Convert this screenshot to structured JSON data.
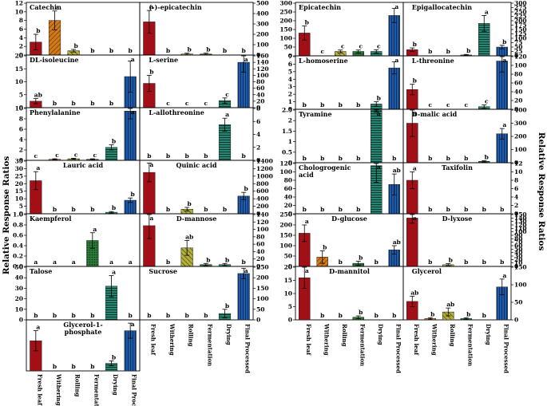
{
  "figure": {
    "left_ylabel": "Relative Response Ratios",
    "right_ylabel": "Relative Response Ratios",
    "stages": [
      "Fresh leaf",
      "Withering",
      "Rolling",
      "Fermentation",
      "Drying",
      "Final Processed"
    ],
    "colors": [
      "#a30f17",
      "#d27a1a",
      "#a9a33c",
      "#2a7a3a",
      "#2a8a74",
      "#1e5ba8"
    ]
  },
  "chart_data": [
    {
      "type": "bar",
      "title": "Catechin",
      "categories": [
        "Fresh leaf",
        "Withering",
        "Rolling",
        "Fermentation",
        "Drying",
        "Final Processed"
      ],
      "values": [
        3,
        8,
        1,
        0,
        0,
        0
      ],
      "errors": [
        1.8,
        2.2,
        0.3,
        0,
        0,
        0
      ],
      "letters": [
        "b",
        "a",
        "b",
        "b",
        "b",
        "b"
      ],
      "ylim": [
        0,
        12
      ],
      "yticks": [
        "0",
        "2",
        "4",
        "6",
        "8",
        "10",
        "12"
      ]
    },
    {
      "type": "bar",
      "title": "(-)-epicatechin",
      "categories": [
        "Fresh leaf",
        "Withering",
        "Rolling",
        "Fermentation",
        "Drying",
        "Final Processed"
      ],
      "values": [
        320,
        0,
        10,
        10,
        0,
        0
      ],
      "errors": [
        110,
        0,
        8,
        8,
        0,
        0
      ],
      "letters": [
        "a",
        "b",
        "b",
        "b",
        "b",
        "b"
      ],
      "ylim": [
        0,
        500
      ],
      "yticks": [
        "0",
        "100",
        "200",
        "300",
        "400",
        "500"
      ]
    },
    {
      "type": "bar",
      "title": "Epicatechin",
      "categories": [
        "Fresh leaf",
        "Withering",
        "Rolling",
        "Fermentation",
        "Drying",
        "Final Processed"
      ],
      "values": [
        130,
        0,
        25,
        25,
        25,
        230
      ],
      "errors": [
        40,
        0,
        8,
        8,
        10,
        40
      ],
      "letters": [
        "b",
        "c",
        "c",
        "c",
        "c",
        "a"
      ],
      "ylim": [
        0,
        300
      ],
      "yticks": [
        "0",
        "50",
        "100",
        "150",
        "200",
        "250",
        "300"
      ]
    },
    {
      "type": "bar",
      "title": "Epigallocatechin",
      "categories": [
        "Fresh leaf",
        "Withering",
        "Rolling",
        "Fermentation",
        "Drying",
        "Final Processed"
      ],
      "values": [
        35,
        0,
        0,
        5,
        185,
        50
      ],
      "errors": [
        10,
        0,
        0,
        3,
        45,
        10
      ],
      "letters": [
        "b",
        "b",
        "b",
        "b",
        "a",
        "b"
      ],
      "ylim": [
        0,
        300
      ],
      "yticks": [
        "0",
        "25",
        "50",
        "75",
        "100",
        "125",
        "150",
        "175",
        "200",
        "225",
        "250",
        "275",
        "300"
      ]
    },
    {
      "type": "bar",
      "title": "DL-isoleucine",
      "categories": [
        "Fresh leaf",
        "Withering",
        "Rolling",
        "Fermentation",
        "Drying",
        "Final Processed"
      ],
      "values": [
        2.5,
        0,
        0,
        0,
        0,
        12
      ],
      "errors": [
        1,
        0,
        0,
        0,
        0,
        6
      ],
      "letters": [
        "ab",
        "b",
        "b",
        "b",
        "b",
        "a"
      ],
      "ylim": [
        0,
        20
      ],
      "yticks": [
        "0",
        "5",
        "10",
        "15",
        "20"
      ]
    },
    {
      "type": "bar",
      "title": "L-serine",
      "categories": [
        "Fresh leaf",
        "Withering",
        "Rolling",
        "Fermentation",
        "Drying",
        "Final Processed"
      ],
      "values": [
        75,
        0,
        0,
        0,
        22,
        140
      ],
      "errors": [
        25,
        0,
        0,
        0,
        8,
        30
      ],
      "letters": [
        "b",
        "c",
        "c",
        "c",
        "c",
        "a"
      ],
      "ylim": [
        0,
        160
      ],
      "yticks": [
        "0",
        "20",
        "40",
        "60",
        "80",
        "100",
        "120",
        "140",
        "160"
      ]
    },
    {
      "type": "bar",
      "title": "L-homoserine",
      "categories": [
        "Fresh leaf",
        "Withering",
        "Rolling",
        "Fermentation",
        "Drying",
        "Final Processed"
      ],
      "values": [
        0,
        0,
        0,
        0,
        0.7,
        5.5
      ],
      "errors": [
        0,
        0,
        0,
        0,
        0.3,
        0.8
      ],
      "letters": [
        "b",
        "b",
        "b",
        "b",
        "b",
        "a"
      ],
      "ylim": [
        0,
        7
      ],
      "yticks": [
        "0",
        "1",
        "2",
        "3",
        "4",
        "5",
        "6",
        "7"
      ]
    },
    {
      "type": "bar",
      "title": "L-threonine",
      "categories": [
        "Fresh leaf",
        "Withering",
        "Rolling",
        "Fermentation",
        "Drying",
        "Final Processed"
      ],
      "values": [
        45,
        0,
        0,
        0,
        6,
        110
      ],
      "errors": [
        12,
        0,
        0,
        0,
        4,
        25
      ],
      "letters": [
        "b",
        "c",
        "c",
        "c",
        "c",
        "a"
      ],
      "ylim": [
        0,
        120
      ],
      "yticks": [
        "0",
        "20",
        "40",
        "60",
        "80",
        "100",
        "120"
      ]
    },
    {
      "type": "bar",
      "title": "Phenylalanine",
      "categories": [
        "Fresh leaf",
        "Withering",
        "Rolling",
        "Fermentation",
        "Drying",
        "Final Processed"
      ],
      "values": [
        0,
        0.2,
        0.3,
        0.2,
        2.5,
        9.5
      ],
      "errors": [
        0,
        0.1,
        0.1,
        0.1,
        0.5,
        1.5
      ],
      "letters": [
        "c",
        "c",
        "c",
        "c",
        "b",
        "a"
      ],
      "ylim": [
        0,
        10
      ],
      "yticks": [
        "0",
        "2",
        "4",
        "6",
        "8",
        "10"
      ]
    },
    {
      "type": "bar",
      "title": "L-allothreonine",
      "categories": [
        "Fresh leaf",
        "Withering",
        "Rolling",
        "Fermentation",
        "Drying",
        "Final Processed"
      ],
      "values": [
        0,
        0,
        0,
        0,
        5.5,
        0
      ],
      "errors": [
        0,
        0,
        0,
        0,
        1,
        0
      ],
      "letters": [
        "b",
        "b",
        "b",
        "b",
        "a",
        "b"
      ],
      "ylim": [
        0,
        8
      ],
      "yticks": [
        "0",
        "2",
        "4",
        "6",
        "8"
      ]
    },
    {
      "type": "bar",
      "title": "Tyramine",
      "categories": [
        "Fresh leaf",
        "Withering",
        "Rolling",
        "Fermentation",
        "Drying",
        "Final Processed"
      ],
      "values": [
        0,
        0,
        0,
        0,
        2.5,
        0
      ],
      "errors": [
        0,
        0,
        0,
        0,
        0.1,
        0
      ],
      "letters": [
        "b",
        "b",
        "b",
        "b",
        "a",
        "b"
      ],
      "ylim": [
        0,
        2.5
      ],
      "yticks": [
        "0",
        "0.5",
        "1",
        "1.5",
        "2",
        "2.5"
      ]
    },
    {
      "type": "bar",
      "title": "D-malic acid",
      "categories": [
        "Fresh leaf",
        "Withering",
        "Rolling",
        "Fermentation",
        "Drying",
        "Final Processed"
      ],
      "values": [
        300,
        0,
        0,
        0,
        10,
        220
      ],
      "errors": [
        100,
        0,
        0,
        0,
        5,
        40
      ],
      "letters": [
        "a",
        "b",
        "b",
        "b",
        "b",
        "a"
      ],
      "ylim": [
        0,
        400
      ],
      "yticks": [
        "0",
        "100",
        "200",
        "300",
        "400"
      ]
    },
    {
      "type": "bar",
      "title": "Lauric acid",
      "categories": [
        "Fresh leaf",
        "Withering",
        "Rolling",
        "Fermentation",
        "Drying",
        "Final Processed"
      ],
      "values": [
        22,
        0,
        0,
        0,
        1,
        9
      ],
      "errors": [
        6,
        0,
        0,
        0,
        0.5,
        1.5
      ],
      "letters": [
        "a",
        "b",
        "b",
        "b",
        "b",
        "b"
      ],
      "ylim": [
        0,
        35
      ],
      "yticks": [
        "0",
        "5",
        "10",
        "15",
        "20",
        "25",
        "30",
        "35"
      ]
    },
    {
      "type": "bar",
      "title": "Quinic acid",
      "categories": [
        "Fresh leaf",
        "Withering",
        "Rolling",
        "Fermentation",
        "Drying",
        "Final Processed"
      ],
      "values": [
        1100,
        0,
        120,
        0,
        0,
        470
      ],
      "errors": [
        250,
        0,
        50,
        0,
        0,
        100
      ],
      "letters": [
        "a",
        "b",
        "b",
        "b",
        "b",
        "b"
      ],
      "ylim": [
        0,
        1400
      ],
      "yticks": [
        "0",
        "200",
        "400",
        "600",
        "800",
        "1000",
        "1200",
        "1400"
      ]
    },
    {
      "type": "bar",
      "title": "Chologrogenic acid",
      "categories": [
        "Fresh leaf",
        "Withering",
        "Rolling",
        "Fermentation",
        "Drying",
        "Final Processed"
      ],
      "values": [
        0,
        0,
        0,
        0,
        115,
        70
      ],
      "errors": [
        0,
        0,
        0,
        0,
        40,
        25
      ],
      "letters": [
        "b",
        "b",
        "b",
        "b",
        "a",
        "ab"
      ],
      "ylim": [
        0,
        120
      ],
      "yticks": [
        "0",
        "20",
        "40",
        "60",
        "80",
        "100",
        "120"
      ]
    },
    {
      "type": "bar",
      "title": "Taxifolin",
      "categories": [
        "Fresh leaf",
        "Withering",
        "Rolling",
        "Fermentation",
        "Drying",
        "Final Processed"
      ],
      "values": [
        8,
        0,
        0,
        0,
        0,
        0
      ],
      "errors": [
        2,
        0,
        0,
        0,
        0,
        0
      ],
      "letters": [
        "a",
        "b",
        "b",
        "b",
        "b",
        "b"
      ],
      "ylim": [
        0,
        12
      ],
      "yticks": [
        "0",
        "2",
        "4",
        "6",
        "8",
        "10",
        "12"
      ]
    },
    {
      "type": "bar",
      "title": "Kaempferol",
      "categories": [
        "Fresh leaf",
        "Withering",
        "Rolling",
        "Fermentation",
        "Drying",
        "Final Processed"
      ],
      "values": [
        0,
        0,
        0,
        0.5,
        0,
        0
      ],
      "errors": [
        0,
        0,
        0,
        0.15,
        0,
        0
      ],
      "letters": [
        "a",
        "a",
        "a",
        "a",
        "a",
        "a"
      ],
      "ylim": [
        0,
        1
      ],
      "yticks": [
        "0.0",
        "0.2",
        "0.4",
        "0.6",
        "0.8",
        "1.0"
      ]
    },
    {
      "type": "bar",
      "title": "D-mannose",
      "categories": [
        "Fresh leaf",
        "Withering",
        "Rolling",
        "Fermentation",
        "Drying",
        "Final Processed"
      ],
      "values": [
        110,
        0,
        50,
        5,
        5,
        0
      ],
      "errors": [
        35,
        0,
        20,
        3,
        3,
        0
      ],
      "letters": [
        "a",
        "b",
        "ab",
        "b",
        "b",
        "b"
      ],
      "ylim": [
        0,
        140
      ],
      "yticks": [
        "0",
        "20",
        "40",
        "60",
        "80",
        "100",
        "120",
        "140"
      ]
    },
    {
      "type": "bar",
      "title": "D-glucose",
      "categories": [
        "Fresh leaf",
        "Withering",
        "Rolling",
        "Fermentation",
        "Drying",
        "Final Processed"
      ],
      "values": [
        160,
        45,
        0,
        15,
        0,
        80
      ],
      "errors": [
        40,
        30,
        0,
        10,
        0,
        20
      ],
      "letters": [
        "a",
        "b",
        "b",
        "b",
        "b",
        "ab"
      ],
      "ylim": [
        0,
        250
      ],
      "yticks": [
        "0",
        "50",
        "100",
        "150",
        "200",
        "250"
      ]
    },
    {
      "type": "bar",
      "title": "D-lyxose",
      "categories": [
        "Fresh leaf",
        "Withering",
        "Rolling",
        "Fermentation",
        "Drying",
        "Final Processed"
      ],
      "values": [
        140,
        0,
        5,
        0,
        0,
        0
      ],
      "errors": [
        15,
        0,
        3,
        0,
        0,
        0
      ],
      "letters": [
        "a",
        "b",
        "b",
        "b",
        "b",
        "b"
      ],
      "ylim": [
        0,
        150
      ],
      "yticks": [
        "0",
        "10",
        "20",
        "30",
        "40",
        "50",
        "60",
        "70",
        "80",
        "90",
        "100",
        "110",
        "120",
        "130",
        "140",
        "150"
      ]
    },
    {
      "type": "bar",
      "title": "Talose",
      "categories": [
        "Fresh leaf",
        "Withering",
        "Rolling",
        "Fermentation",
        "Drying",
        "Final Processed"
      ],
      "values": [
        0,
        0,
        0,
        0,
        32,
        0
      ],
      "errors": [
        0,
        0,
        0,
        0,
        10,
        0
      ],
      "letters": [
        "b",
        "b",
        "b",
        "b",
        "a",
        "b"
      ],
      "ylim": [
        0,
        50
      ],
      "yticks": [
        "0",
        "10",
        "20",
        "30",
        "40",
        "50"
      ]
    },
    {
      "type": "bar",
      "title": "Sucrose",
      "categories": [
        "Fresh leaf",
        "Withering",
        "Rolling",
        "Fermentation",
        "Drying",
        "Final Processed"
      ],
      "values": [
        0,
        0,
        0,
        0,
        30,
        220
      ],
      "errors": [
        0,
        0,
        0,
        0,
        20,
        25
      ],
      "letters": [
        "b",
        "b",
        "b",
        "b",
        "b",
        "a"
      ],
      "ylim": [
        0,
        250
      ],
      "yticks": [
        "0",
        "50",
        "100",
        "150",
        "200",
        "250"
      ]
    },
    {
      "type": "bar",
      "title": "D-mannitol",
      "categories": [
        "Fresh leaf",
        "Withering",
        "Rolling",
        "Fermentation",
        "Drying",
        "Final Processed"
      ],
      "values": [
        16,
        0,
        0,
        1,
        0,
        0
      ],
      "errors": [
        4,
        0,
        0,
        0.5,
        0,
        0
      ],
      "letters": [
        "a",
        "b",
        "b",
        "b",
        "b",
        "b"
      ],
      "ylim": [
        0,
        20
      ],
      "yticks": [
        "0",
        "5",
        "10",
        "15",
        "20"
      ]
    },
    {
      "type": "bar",
      "title": "Glycerol",
      "categories": [
        "Fresh leaf",
        "Withering",
        "Rolling",
        "Fermentation",
        "Drying",
        "Final Processed"
      ],
      "values": [
        70,
        5,
        30,
        5,
        0,
        125
      ],
      "errors": [
        20,
        3,
        15,
        3,
        0,
        30
      ],
      "letters": [
        "ab",
        "b",
        "ab",
        "b",
        "b",
        "a"
      ],
      "ylim": [
        0,
        200
      ],
      "yticks": [
        "0",
        "50",
        "100",
        "150"
      ]
    },
    {
      "type": "bar",
      "title": "Glycerol-1-phosphate",
      "categories": [
        "Fresh leaf",
        "Withering",
        "Rolling",
        "Fermentation",
        "Drying",
        "Final Processed"
      ],
      "values": [
        120,
        0,
        0,
        0,
        30,
        160
      ],
      "errors": [
        40,
        0,
        0,
        0,
        10,
        30
      ],
      "letters": [
        "a",
        "b",
        "b",
        "b",
        "b",
        "a"
      ],
      "ylim": [
        0,
        200
      ],
      "yticks": []
    }
  ]
}
